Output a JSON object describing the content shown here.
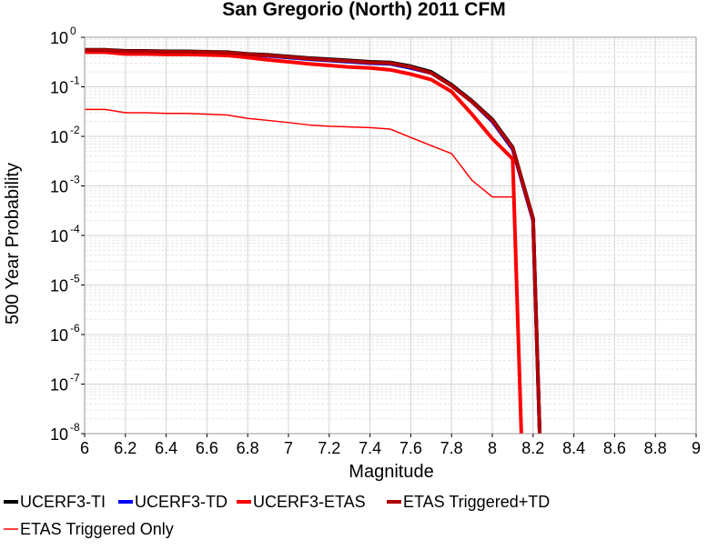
{
  "chart_data": {
    "type": "line",
    "title": "San Gregorio (North) 2011 CFM",
    "xlabel": "Magnitude",
    "ylabel": "500 Year Probability",
    "xlim": [
      6,
      9
    ],
    "ylim": [
      1e-08,
      1
    ],
    "yscale": "log",
    "grid": true,
    "legend_position": "bottom",
    "x_ticks": [
      "6",
      "6.2",
      "6.4",
      "6.6",
      "6.8",
      "7",
      "7.2",
      "7.4",
      "7.6",
      "7.8",
      "8",
      "8.2",
      "8.4",
      "8.6",
      "8.8",
      "9"
    ],
    "y_ticks": [
      {
        "base": "10",
        "exp": "0"
      },
      {
        "base": "10",
        "exp": "-1"
      },
      {
        "base": "10",
        "exp": "-2"
      },
      {
        "base": "10",
        "exp": "-3"
      },
      {
        "base": "10",
        "exp": "-4"
      },
      {
        "base": "10",
        "exp": "-5"
      },
      {
        "base": "10",
        "exp": "-6"
      },
      {
        "base": "10",
        "exp": "-7"
      },
      {
        "base": "10",
        "exp": "-8"
      }
    ],
    "series": [
      {
        "name": "UCERF3-TI",
        "color": "#000000",
        "width": 4,
        "x": [
          6.0,
          6.1,
          6.2,
          6.3,
          6.4,
          6.5,
          6.6,
          6.7,
          6.8,
          6.9,
          7.0,
          7.1,
          7.2,
          7.3,
          7.4,
          7.5,
          7.6,
          7.7,
          7.8,
          7.9,
          8.0,
          8.1,
          8.2,
          8.24
        ],
        "y": [
          0.56,
          0.56,
          0.53,
          0.53,
          0.52,
          0.52,
          0.51,
          0.5,
          0.46,
          0.44,
          0.41,
          0.38,
          0.36,
          0.34,
          0.32,
          0.31,
          0.26,
          0.2,
          0.11,
          0.052,
          0.022,
          0.006,
          0.00022,
          1e-09
        ]
      },
      {
        "name": "UCERF3-TD",
        "color": "#0000ff",
        "width": 4,
        "x": [
          6.0,
          6.1,
          6.2,
          6.3,
          6.4,
          6.5,
          6.6,
          6.7,
          6.8,
          6.9,
          7.0,
          7.1,
          7.2,
          7.3,
          7.4,
          7.5,
          7.6,
          7.7,
          7.8,
          7.9,
          8.0,
          8.1,
          8.2,
          8.24
        ],
        "y": [
          0.54,
          0.54,
          0.51,
          0.51,
          0.5,
          0.5,
          0.49,
          0.48,
          0.44,
          0.42,
          0.39,
          0.36,
          0.34,
          0.32,
          0.3,
          0.29,
          0.24,
          0.19,
          0.105,
          0.05,
          0.02,
          0.0055,
          0.0002,
          1e-09
        ]
      },
      {
        "name": "UCERF3-ETAS",
        "color": "#ff0000",
        "width": 4,
        "x": [
          6.0,
          6.1,
          6.2,
          6.3,
          6.4,
          6.5,
          6.6,
          6.7,
          6.8,
          6.9,
          7.0,
          7.1,
          7.2,
          7.3,
          7.4,
          7.5,
          7.6,
          7.7,
          7.8,
          7.9,
          8.0,
          8.1,
          8.15
        ],
        "y": [
          0.5,
          0.5,
          0.46,
          0.46,
          0.45,
          0.45,
          0.44,
          0.43,
          0.39,
          0.35,
          0.32,
          0.29,
          0.27,
          0.25,
          0.24,
          0.22,
          0.18,
          0.14,
          0.08,
          0.028,
          0.009,
          0.0035,
          1e-09
        ]
      },
      {
        "name": "ETAS Triggered+TD",
        "color": "#b00000",
        "width": 4,
        "x": [
          6.0,
          6.1,
          6.2,
          6.3,
          6.4,
          6.5,
          6.6,
          6.7,
          6.8,
          6.9,
          7.0,
          7.1,
          7.2,
          7.3,
          7.4,
          7.5,
          7.6,
          7.7,
          7.8,
          7.9,
          8.0,
          8.1,
          8.2,
          8.24
        ],
        "y": [
          0.55,
          0.55,
          0.52,
          0.52,
          0.51,
          0.51,
          0.5,
          0.49,
          0.45,
          0.43,
          0.4,
          0.37,
          0.35,
          0.33,
          0.31,
          0.3,
          0.25,
          0.19,
          0.105,
          0.05,
          0.021,
          0.0058,
          0.00021,
          1e-09
        ]
      },
      {
        "name": "ETAS Triggered Only",
        "color": "#ff0000",
        "width": 1.5,
        "x": [
          6.0,
          6.1,
          6.2,
          6.3,
          6.4,
          6.5,
          6.6,
          6.7,
          6.8,
          6.9,
          7.0,
          7.1,
          7.2,
          7.3,
          7.4,
          7.5,
          7.6,
          7.7,
          7.8,
          7.9,
          8.0,
          8.1,
          8.1001
        ],
        "y": [
          0.035,
          0.035,
          0.03,
          0.03,
          0.029,
          0.029,
          0.028,
          0.027,
          0.023,
          0.021,
          0.019,
          0.017,
          0.016,
          0.0155,
          0.015,
          0.014,
          0.0095,
          0.0065,
          0.0045,
          0.0013,
          0.0006,
          0.0006,
          0.0035
        ]
      }
    ]
  }
}
